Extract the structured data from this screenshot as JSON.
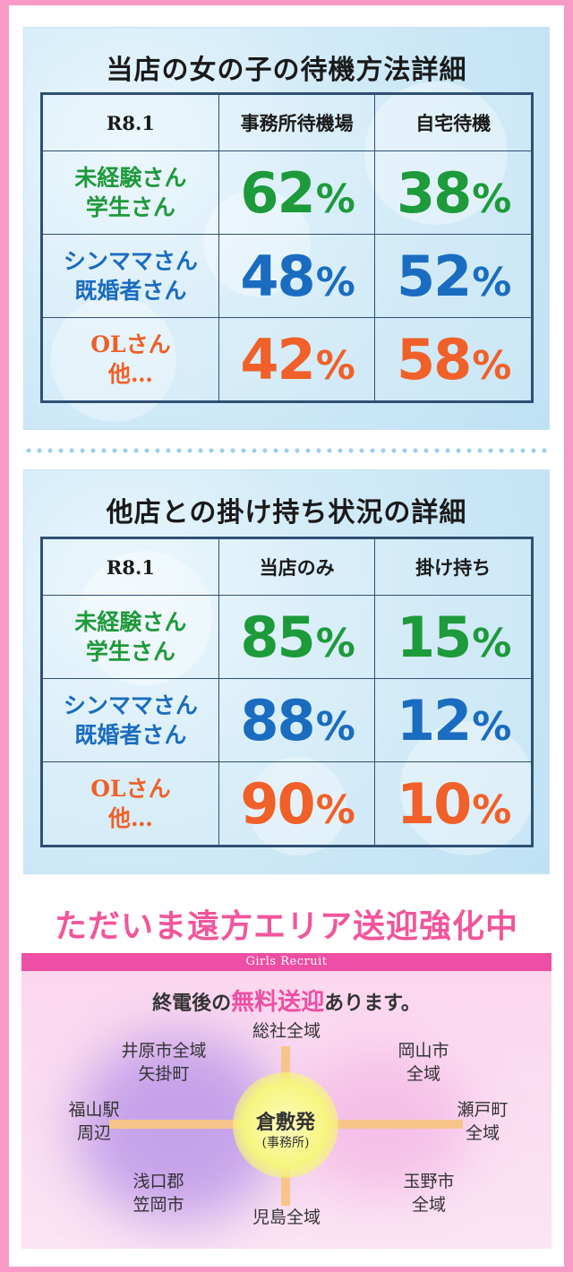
{
  "table1": {
    "title": "当店の女の子の待機方法詳細",
    "headers": [
      "R8.1",
      "事務所待機場",
      "自宅待機"
    ],
    "rows": [
      {
        "label_line1": "未経験さん",
        "label_line2": "学生さん",
        "v1": "62",
        "v2": "38",
        "color": "#1d9a3a"
      },
      {
        "label_line1": "シンママさん",
        "label_line2": "既婚者さん",
        "v1": "48",
        "v2": "52",
        "color": "#1a6cc0"
      },
      {
        "label_line1": "OLさん",
        "label_line2": "他…",
        "v1": "42",
        "v2": "58",
        "color": "#f06028"
      }
    ]
  },
  "table2": {
    "title": "他店との掛け持ち状況の詳細",
    "headers": [
      "R8.1",
      "当店のみ",
      "掛け持ち"
    ],
    "rows": [
      {
        "label_line1": "未経験さん",
        "label_line2": "学生さん",
        "v1": "85",
        "v2": "15",
        "color": "#1d9a3a"
      },
      {
        "label_line1": "シンママさん",
        "label_line2": "既婚者さん",
        "v1": "88",
        "v2": "12",
        "color": "#1a6cc0"
      },
      {
        "label_line1": "OLさん",
        "label_line2": "他…",
        "v1": "90",
        "v2": "10",
        "color": "#f06028"
      }
    ]
  },
  "percent_sign": "%",
  "promo": {
    "headline": "ただいま遠方エリア送迎強化中",
    "band": "Girls Recruit",
    "lead_pre": "終電後の",
    "lead_highlight": "無料送迎",
    "lead_post": "あります。",
    "center_name": "倉敷発",
    "center_sub": "(事務所)",
    "places": {
      "north": "総社全域",
      "northwest_1": "井原市全域",
      "northwest_2": "矢掛町",
      "northeast_1": "岡山市",
      "northeast_2": "全域",
      "west_1": "福山駅",
      "west_2": "周辺",
      "east_1": "瀬戸町",
      "east_2": "全域",
      "southwest_1": "浅口郡",
      "southwest_2": "笠岡市",
      "southeast_1": "玉野市",
      "southeast_2": "全域",
      "south": "児島全域"
    },
    "colors": {
      "accent": "#ee4ea3",
      "headline": "#f2559b",
      "road": "#f7c589"
    }
  }
}
